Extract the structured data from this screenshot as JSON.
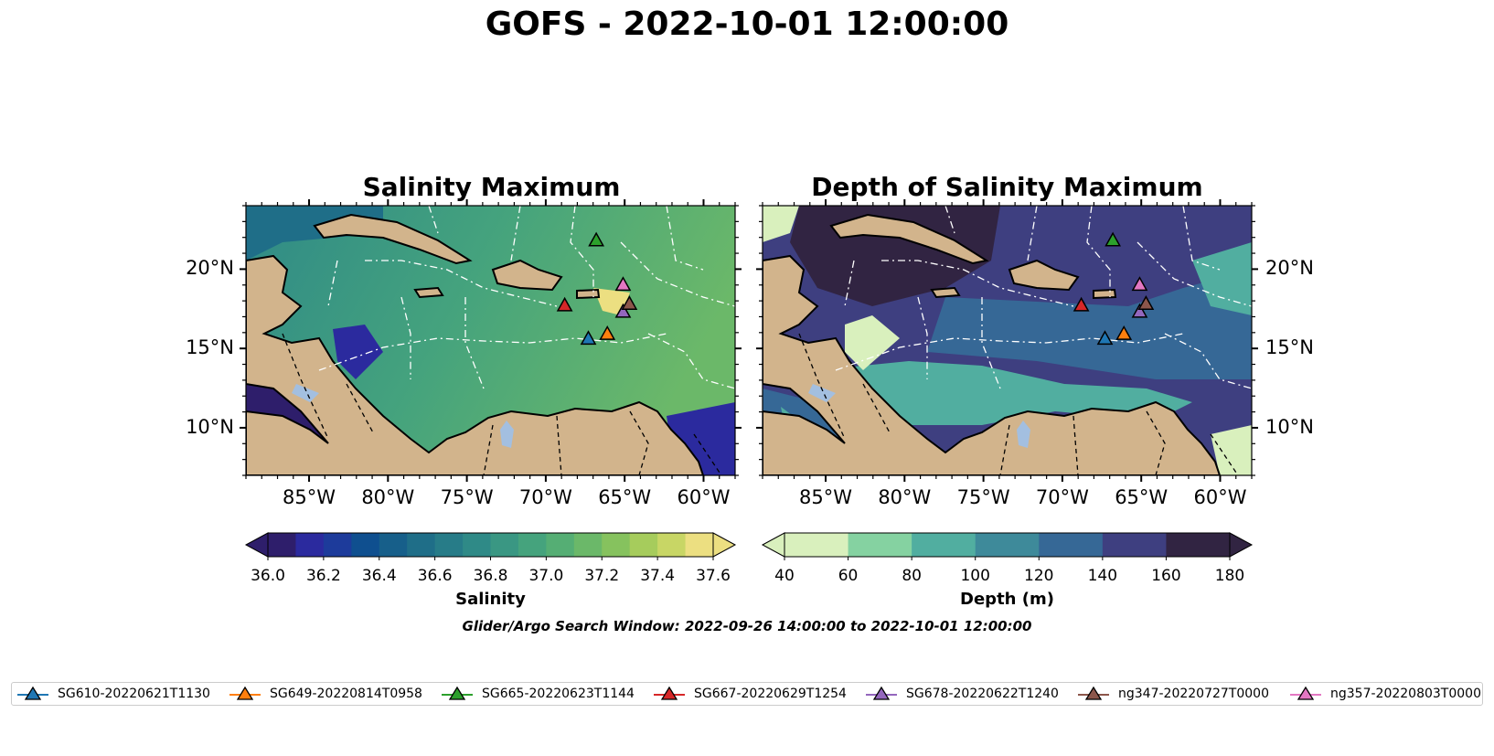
{
  "title": "GOFS - 2022-10-01 12:00:00",
  "panels": [
    {
      "title": "Salinity Maximum",
      "colorbar": {
        "label": "Salinity",
        "ticks": [
          "36.0",
          "36.2",
          "36.4",
          "36.6",
          "36.8",
          "37.0",
          "37.2",
          "37.4",
          "37.6"
        ],
        "colors": [
          "#2e1e6b",
          "#2b2a9e",
          "#1d3b9b",
          "#0f4f8f",
          "#175f8a",
          "#1f6e88",
          "#277c88",
          "#2f8a87",
          "#3a9783",
          "#45a37d",
          "#55ae74",
          "#6bb869",
          "#86c25e",
          "#a6cc5c",
          "#c8d665",
          "#ecdf81"
        ]
      }
    },
    {
      "title": "Depth of Salinity Maximum",
      "colorbar": {
        "label": "Depth (m)",
        "ticks": [
          "40",
          "60",
          "80",
          "100",
          "120",
          "140",
          "160",
          "180"
        ],
        "colors": [
          "#d9f0bd",
          "#85d2a1",
          "#51aea0",
          "#3e8a9a",
          "#366896",
          "#3e3f80",
          "#312442"
        ]
      }
    }
  ],
  "lat_ticks": [
    "20°N",
    "15°N",
    "10°N"
  ],
  "lon_ticks": [
    "85°W",
    "80°W",
    "75°W",
    "70°W",
    "65°W",
    "60°W"
  ],
  "search_window": "Glider/Argo Search Window: 2022-09-26 14:00:00 to 2022-10-01 12:00:00",
  "gliders": [
    {
      "name": "SG610-20220621T1130",
      "color": "#1f77b4",
      "lon": -67.3,
      "lat": 15.6
    },
    {
      "name": "SG649-20220814T0958",
      "color": "#ff7f0e",
      "lon": -66.1,
      "lat": 15.9
    },
    {
      "name": "SG665-20220623T1144",
      "color": "#2ca02c",
      "lon": -66.8,
      "lat": 21.8
    },
    {
      "name": "SG667-20220629T1254",
      "color": "#d62728",
      "lon": -68.8,
      "lat": 17.7
    },
    {
      "name": "SG678-20220622T1240",
      "color": "#9467bd",
      "lon": -65.1,
      "lat": 17.3
    },
    {
      "name": "ng347-20220727T0000",
      "color": "#8c564b",
      "lon": -64.7,
      "lat": 17.8
    },
    {
      "name": "ng357-20220803T0000",
      "color": "#e377c2",
      "lon": -65.1,
      "lat": 19.0
    }
  ]
}
